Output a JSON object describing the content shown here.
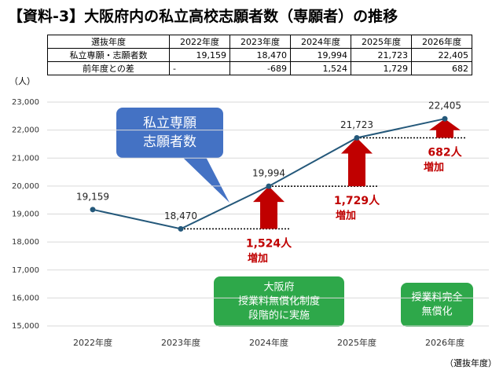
{
  "title": "【資料-3】大阪府内の私立高校志願者数（専願者）の推移",
  "table": {
    "header": [
      "選抜年度",
      "2022年度",
      "2023年度",
      "2024年度",
      "2025年度",
      "2026年度"
    ],
    "rows": [
      [
        "私立専願・志願者数",
        "19,159",
        "18,470",
        "19,994",
        "21,723",
        "22,405"
      ],
      [
        "前年度との差",
        "-",
        "-689",
        "1,524",
        "1,729",
        "682"
      ]
    ]
  },
  "callouts": {
    "series_label": [
      "私立専願",
      "志願者数"
    ],
    "policy_2024": [
      "大阪府",
      "授業料無償化制度",
      "段階的に実施"
    ],
    "policy_2026": [
      "授業料完全",
      "無償化"
    ]
  },
  "chart_data": {
    "type": "line",
    "y_label": "（人）",
    "x_label": "（選抜年度）",
    "categories": [
      "2022年度",
      "2023年度",
      "2024年度",
      "2025年度",
      "2026年度"
    ],
    "values": [
      19159,
      18470,
      19994,
      21723,
      22405
    ],
    "value_labels": [
      "19,159",
      "18,470",
      "19,994",
      "21,723",
      "22,405"
    ],
    "color": "#24587a",
    "increase_color": "#c00000",
    "increase_labels": [
      null,
      null,
      {
        "amount": "1,524人",
        "note": "増加"
      },
      {
        "amount": "1,729人",
        "note": "増加"
      },
      {
        "amount": "682人",
        "note": "増加"
      }
    ],
    "ylim": [
      15000,
      23000
    ],
    "yticks": [
      {
        "value": 15000,
        "label": "15,000"
      },
      {
        "value": 16000,
        "label": "16,000"
      },
      {
        "value": 17000,
        "label": "17,000"
      },
      {
        "value": 18000,
        "label": "18,000"
      },
      {
        "value": 19000,
        "label": "19,000"
      },
      {
        "value": 20000,
        "label": "20,000"
      },
      {
        "value": 21000,
        "label": "21,000"
      },
      {
        "value": 22000,
        "label": "22,000"
      },
      {
        "value": 23000,
        "label": "23,000"
      }
    ],
    "grid": true
  }
}
